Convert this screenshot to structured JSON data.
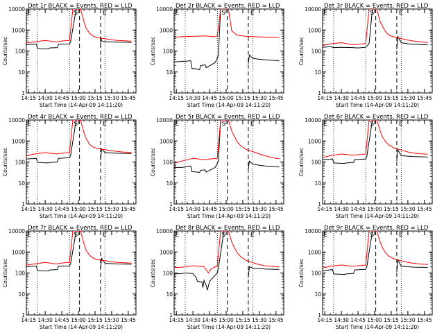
{
  "chart_data": {
    "type": "line",
    "layout": "3x3 grid",
    "shared": {
      "ylabel": "Counts/sec",
      "xlabel": "Start Time (14-Apr-09 14:11:20)",
      "y_scale": "log",
      "ylim": [
        1,
        10000
      ],
      "y_ticks": [
        "1",
        "10",
        "100",
        "1000",
        "10000"
      ],
      "xlim": [
        "14:13",
        "15:52"
      ],
      "x_ticks": [
        "14:15",
        "14:30",
        "14:45",
        "15:00",
        "15:15",
        "15:30",
        "15:45"
      ],
      "dotted_lines": [
        "14:23",
        "14:52",
        "15:24"
      ],
      "dashed_lines": [
        "15:01",
        "15:20"
      ],
      "markers": [
        {
          "label": "E",
          "time": "14:15"
        },
        {
          "label": "S",
          "time": "14:57"
        },
        {
          "label": "E",
          "time": "15:23"
        }
      ],
      "series_colors": {
        "events": "#000000",
        "lld": "#ff0000"
      }
    },
    "panels": [
      {
        "title": "Det 1r BLACK = Events, RED = LLD",
        "series": [
          {
            "color": "#000000",
            "x": [
              "14:13",
              "14:19",
              "14:22",
              "14:23",
              "14:33",
              "14:34",
              "14:41",
              "14:42",
              "14:52",
              "14:53",
              "14:58",
              "15:02",
              "15:18",
              "15:20",
              "15:20",
              "15:21",
              "15:24",
              "15:30",
              "15:35",
              "15:45",
              "15:48"
            ],
            "y": [
              200,
              210,
              215,
              130,
              125,
              140,
              145,
              210,
              215,
              280,
              10000,
              10000,
              null,
              150,
              500,
              300,
              280,
              270,
              265,
              260,
              255
            ]
          },
          {
            "color": "#ff0000",
            "x": [
              "14:13",
              "14:20",
              "14:30",
              "14:40",
              "14:45",
              "14:52",
              "14:55",
              "15:02",
              "15:05",
              "15:07",
              "15:10",
              "15:13",
              "15:18",
              "15:25",
              "15:30",
              "15:35",
              "15:40",
              "15:45",
              "15:48"
            ],
            "y": [
              240,
              270,
              320,
              270,
              300,
              320,
              10000,
              10000,
              2500,
              1200,
              700,
              520,
              420,
              380,
              340,
              320,
              310,
              300,
              295
            ]
          }
        ]
      },
      {
        "title": "Det 2r BLACK = Events, RED = LLD",
        "series": [
          {
            "color": "#000000",
            "x": [
              "14:13",
              "14:20",
              "14:25",
              "14:28",
              "14:29",
              "14:36",
              "14:37",
              "14:41",
              "14:42",
              "14:50",
              "14:52",
              "14:53",
              "14:55",
              "15:02",
              "15:20",
              "15:20",
              "15:21",
              "15:24",
              "15:30",
              "15:35",
              "15:45",
              "15:48"
            ],
            "y": [
              30,
              32,
              33,
              35,
              15,
              13,
              20,
              22,
              16,
              28,
              45,
              65,
              10000,
              10000,
              null,
              25,
              65,
              45,
              40,
              38,
              35,
              34
            ]
          },
          {
            "color": "#ff0000",
            "x": [
              "14:13",
              "14:20",
              "14:30",
              "14:40",
              "14:50",
              "14:52",
              "14:55",
              "15:02",
              "15:05",
              "15:10",
              "15:18",
              "15:25",
              "15:30",
              "15:35",
              "15:40",
              "15:45",
              "15:48"
            ],
            "y": [
              450,
              480,
              500,
              520,
              480,
              520,
              10000,
              10000,
              900,
              560,
              500,
              480,
              470,
              460,
              460,
              455,
              450
            ]
          }
        ]
      },
      {
        "title": "Det 3r BLACK = Events, RED = LLD",
        "series": [
          {
            "color": "#000000",
            "x": [
              "14:13",
              "14:20",
              "14:23",
              "14:30",
              "14:40",
              "14:45",
              "14:52",
              "14:55",
              "14:58",
              "15:02",
              "15:20",
              "15:20",
              "15:21",
              "15:24",
              "15:30",
              "15:35",
              "15:45",
              "15:48"
            ],
            "y": [
              150,
              160,
              145,
              150,
              145,
              140,
              150,
              220,
              10000,
              10000,
              null,
              120,
              500,
              250,
              220,
              210,
              200,
              195
            ]
          },
          {
            "color": "#ff0000",
            "x": [
              "14:13",
              "14:20",
              "14:30",
              "14:40",
              "14:45",
              "14:52",
              "14:55",
              "15:02",
              "15:05",
              "15:07",
              "15:10",
              "15:13",
              "15:18",
              "15:25",
              "15:30",
              "15:35",
              "15:40",
              "15:45",
              "15:48"
            ],
            "y": [
              180,
              220,
              250,
              200,
              210,
              230,
              10000,
              10000,
              2500,
              1500,
              800,
              560,
              460,
              380,
              330,
              300,
              280,
              260,
              255
            ]
          }
        ]
      },
      {
        "title": "Det 4r BLACK = Events, RED = LLD",
        "series": [
          {
            "color": "#000000",
            "x": [
              "14:13",
              "14:19",
              "14:22",
              "14:23",
              "14:33",
              "14:34",
              "14:41",
              "14:42",
              "14:52",
              "14:53",
              "14:58",
              "15:02",
              "15:20",
              "15:20",
              "15:21",
              "15:24",
              "15:30",
              "15:35",
              "15:45",
              "15:48"
            ],
            "y": [
              140,
              145,
              150,
              95,
              90,
              95,
              100,
              150,
              160,
              210,
              10000,
              10000,
              null,
              120,
              420,
              280,
              270,
              260,
              255,
              250
            ]
          },
          {
            "color": "#ff0000",
            "x": [
              "14:13",
              "14:20",
              "14:30",
              "14:40",
              "14:45",
              "14:52",
              "14:55",
              "15:02",
              "15:05",
              "15:07",
              "15:10",
              "15:13",
              "15:18",
              "15:25",
              "15:30",
              "15:35",
              "15:40",
              "15:45",
              "15:48"
            ],
            "y": [
              200,
              240,
              280,
              240,
              260,
              280,
              10000,
              10000,
              2500,
              1300,
              700,
              520,
              430,
              380,
              340,
              320,
              300,
              290,
              285
            ]
          }
        ]
      },
      {
        "title": "Det 5r BLACK = Events, RED = LLD",
        "series": [
          {
            "color": "#000000",
            "x": [
              "14:13",
              "14:20",
              "14:25",
              "14:28",
              "14:29",
              "14:36",
              "14:37",
              "14:41",
              "14:42",
              "14:50",
              "14:52",
              "14:53",
              "14:55",
              "15:02",
              "15:20",
              "15:20",
              "15:21",
              "15:24",
              "15:30",
              "15:35",
              "15:45",
              "15:48"
            ],
            "y": [
              55,
              55,
              60,
              65,
              35,
              32,
              40,
              42,
              33,
              55,
              85,
              110,
              10000,
              10000,
              null,
              45,
              110,
              80,
              70,
              65,
              60,
              58
            ]
          },
          {
            "color": "#ff0000",
            "x": [
              "14:13",
              "14:20",
              "14:30",
              "14:40",
              "14:45",
              "14:52",
              "14:55",
              "15:02",
              "15:05",
              "15:07",
              "15:10",
              "15:13",
              "15:18",
              "15:25",
              "15:30",
              "15:35",
              "15:40",
              "15:45",
              "15:48"
            ],
            "y": [
              90,
              110,
              150,
              130,
              140,
              150,
              10000,
              10000,
              3000,
              1800,
              900,
              600,
              400,
              300,
              240,
              200,
              170,
              150,
              145
            ]
          }
        ]
      },
      {
        "title": "Det 6r BLACK = Events, RED = LLD",
        "series": [
          {
            "color": "#000000",
            "x": [
              "14:13",
              "14:19",
              "14:22",
              "14:23",
              "14:33",
              "14:34",
              "14:41",
              "14:42",
              "14:52",
              "14:53",
              "14:58",
              "15:02",
              "15:20",
              "15:20",
              "15:21",
              "15:24",
              "15:30",
              "15:35",
              "15:45",
              "15:48"
            ],
            "y": [
              130,
              135,
              140,
              90,
              85,
              90,
              95,
              130,
              140,
              190,
              10000,
              10000,
              null,
              110,
              380,
              200,
              190,
              180,
              175,
              170
            ]
          },
          {
            "color": "#ff0000",
            "x": [
              "14:13",
              "14:20",
              "14:30",
              "14:40",
              "14:45",
              "14:52",
              "14:55",
              "15:02",
              "15:05",
              "15:07",
              "15:10",
              "15:13",
              "15:18",
              "15:25",
              "15:30",
              "15:35",
              "15:40",
              "15:45",
              "15:48"
            ],
            "y": [
              160,
              200,
              240,
              210,
              220,
              240,
              10000,
              10000,
              3000,
              1600,
              900,
              620,
              460,
              360,
              300,
              270,
              250,
              240,
              235
            ]
          }
        ]
      },
      {
        "title": "Det 7r BLACK = Events, RED = LLD",
        "series": [
          {
            "color": "#000000",
            "x": [
              "14:13",
              "14:19",
              "14:22",
              "14:23",
              "14:33",
              "14:34",
              "14:41",
              "14:42",
              "14:52",
              "14:53",
              "14:58",
              "15:02",
              "15:20",
              "15:20",
              "15:21",
              "15:24",
              "15:30",
              "15:35",
              "15:45",
              "15:48"
            ],
            "y": [
              200,
              210,
              215,
              130,
              125,
              140,
              145,
              210,
              215,
              280,
              10000,
              10000,
              null,
              150,
              500,
              290,
              280,
              270,
              265,
              260
            ]
          },
          {
            "color": "#ff0000",
            "x": [
              "14:13",
              "14:20",
              "14:30",
              "14:40",
              "14:45",
              "14:52",
              "14:55",
              "15:02",
              "15:05",
              "15:07",
              "15:10",
              "15:13",
              "15:18",
              "15:25",
              "15:30",
              "15:35",
              "15:40",
              "15:45",
              "15:48"
            ],
            "y": [
              240,
              270,
              320,
              270,
              300,
              320,
              10000,
              10000,
              2500,
              1200,
              700,
              520,
              420,
              380,
              340,
              320,
              310,
              300,
              295
            ]
          }
        ]
      },
      {
        "title": "Det 8r BLACK = Events, RED = LLD",
        "series": [
          {
            "color": "#000000",
            "x": [
              "14:13",
              "14:20",
              "14:23",
              "14:30",
              "14:33",
              "14:34",
              "14:38",
              "14:39",
              "14:40",
              "14:42",
              "14:43",
              "14:45",
              "14:48",
              "14:52",
              "14:53",
              "14:58",
              "15:02",
              "15:20",
              "15:20",
              "15:21",
              "15:24",
              "15:30",
              "15:35",
              "15:45",
              "15:48"
            ],
            "y": [
              90,
              95,
              100,
              95,
              60,
              40,
              38,
              20,
              45,
              25,
              15,
              40,
              60,
              100,
              170,
              10000,
              10000,
              null,
              60,
              200,
              170,
              160,
              155,
              150,
              148
            ]
          },
          {
            "color": "#ff0000",
            "x": [
              "14:13",
              "14:20",
              "14:30",
              "14:40",
              "14:42",
              "14:44",
              "14:46",
              "14:50",
              "14:52",
              "14:55",
              "15:02",
              "15:05",
              "15:07",
              "15:10",
              "15:13",
              "15:18",
              "15:25",
              "15:30",
              "15:35",
              "15:40",
              "15:45",
              "15:48"
            ],
            "y": [
              180,
              190,
              220,
              200,
              140,
              100,
              150,
              200,
              210,
              10000,
              10000,
              3000,
              1800,
              900,
              600,
              400,
              300,
              250,
              220,
              210,
              200,
              195
            ]
          }
        ]
      },
      {
        "title": "Det 9r BLACK = Events, RED = LLD",
        "series": [
          {
            "color": "#000000",
            "x": [
              "14:13",
              "14:19",
              "14:22",
              "14:23",
              "14:33",
              "14:34",
              "14:41",
              "14:42",
              "14:52",
              "14:53",
              "14:58",
              "15:02",
              "15:20",
              "15:20",
              "15:21",
              "15:24",
              "15:30",
              "15:35",
              "15:45",
              "15:48"
            ],
            "y": [
              130,
              140,
              145,
              90,
              85,
              90,
              95,
              140,
              150,
              200,
              10000,
              10000,
              null,
              110,
              420,
              210,
              200,
              190,
              185,
              180
            ]
          },
          {
            "color": "#ff0000",
            "x": [
              "14:13",
              "14:20",
              "14:30",
              "14:40",
              "14:45",
              "14:52",
              "14:55",
              "15:02",
              "15:05",
              "15:07",
              "15:10",
              "15:13",
              "15:18",
              "15:25",
              "15:30",
              "15:35",
              "15:40",
              "15:45",
              "15:48"
            ],
            "y": [
              170,
              210,
              240,
              210,
              220,
              240,
              10000,
              10000,
              3000,
              1600,
              900,
              620,
              460,
              370,
              320,
              290,
              270,
              260,
              255
            ]
          }
        ]
      }
    ]
  }
}
